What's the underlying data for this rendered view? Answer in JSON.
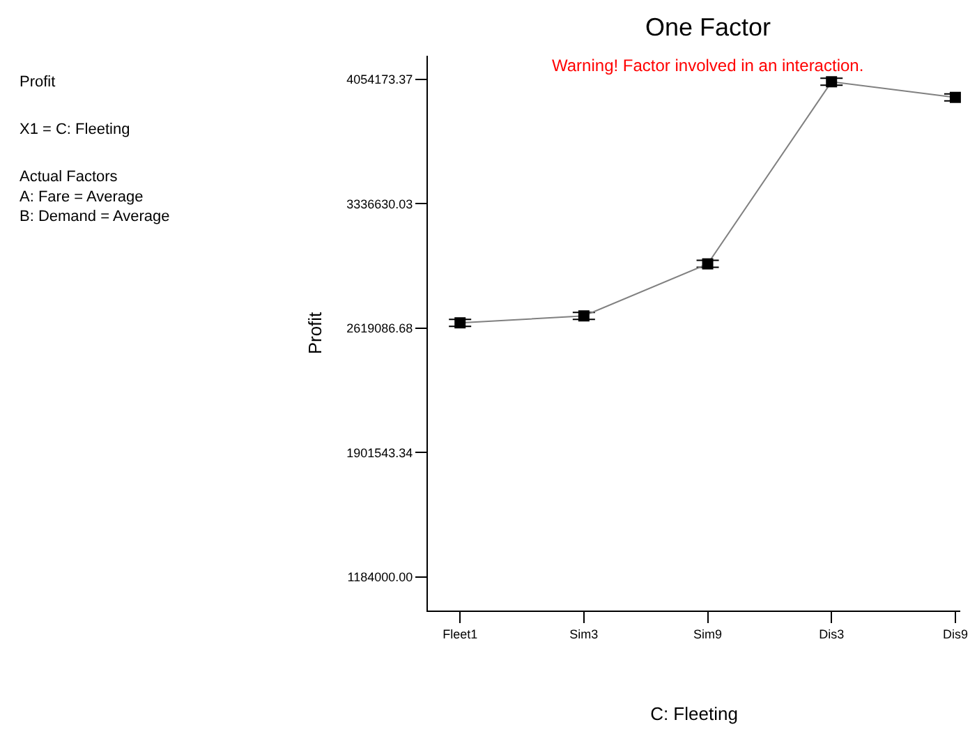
{
  "chart_data": {
    "type": "line",
    "title": "One Factor",
    "xlabel": "C: Fleeting",
    "ylabel": "Profit",
    "annotations": [
      "Profit",
      "X1 = C: Fleeting",
      "Actual Factors\nA: Fare = Average\nB: Demand = Average",
      "Warning! Factor involved in an interaction."
    ],
    "categories": [
      "Fleet1",
      "Sim3",
      "Sim9",
      "Dis3",
      "Dis9"
    ],
    "series": [
      {
        "color": "#000000",
        "values": [
          2650000,
          2690000,
          2990000,
          4040000,
          3950000
        ],
        "errors": [
          20000,
          20000,
          20000,
          20000,
          20000
        ]
      }
    ],
    "ylim": [
      991000,
      4190000
    ],
    "yticks": [
      {
        "value": 1184000,
        "label": "1184000.00"
      },
      {
        "value": 1901543.34,
        "label": "1901543.34"
      },
      {
        "value": 2619086.68,
        "label": "2619086.68"
      },
      {
        "value": 3336630.03,
        "label": "3336630.03"
      },
      {
        "value": 4054173.37,
        "label": "4054173.37"
      }
    ],
    "grid": false,
    "marker": "square",
    "line_style": "solid"
  }
}
